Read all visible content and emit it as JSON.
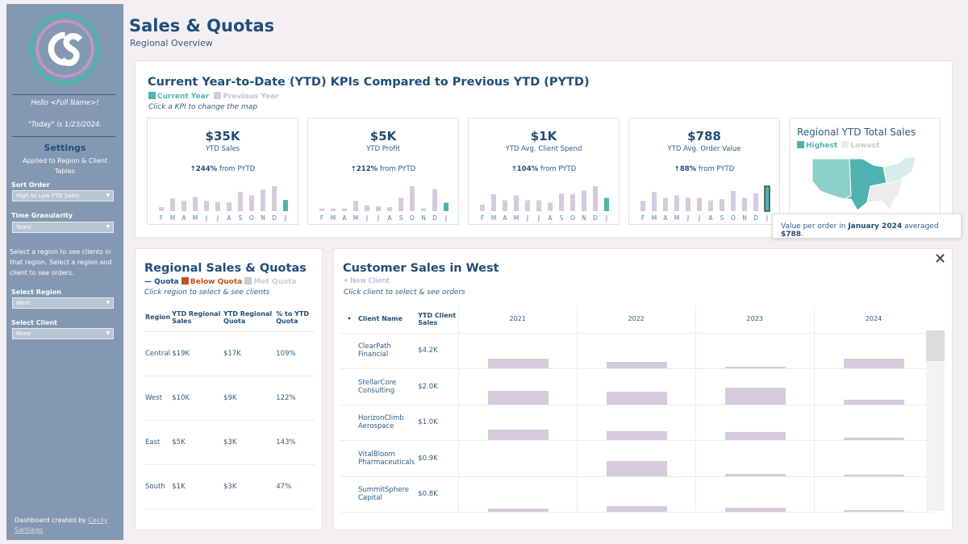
{
  "colors": {
    "current_year": "#4fb3b0",
    "previous_year": "#d5cbdd",
    "below_quota": "#c0521a",
    "met_quota": "#cccccc",
    "sidebar": "#8399b1",
    "title": "#1f4e79"
  },
  "sidebar": {
    "logo_text": "CS",
    "greeting": "Hello <Full Name>!",
    "today": "\"Today\" is 1/23/2024.",
    "settings_title": "Settings",
    "settings_sub": "Applied to Region & Client Tables",
    "sort_order": {
      "label": "Sort Order",
      "value": "High to Low YTD Sales"
    },
    "time_granularity": {
      "label": "Time Granularity",
      "value": "Years"
    },
    "instructions": "Select a region to see clients in that region. Select a region and client to see orders.",
    "select_region": {
      "label": "Select Region",
      "value": "West"
    },
    "select_client": {
      "label": "Select Client",
      "value": "None"
    },
    "credit_prefix": "Dashboard created by ",
    "credit_name": "Cecily Santiago"
  },
  "header": {
    "title": "Sales & Quotas",
    "subtitle": "Regional Overview"
  },
  "kpi_panel": {
    "title": "Current Year-to-Date (YTD) KPIs Compared to Previous YTD (PYTD)",
    "legend_current": "Current Year",
    "legend_previous": "Previous Year",
    "hint": "Click a KPI to change the map",
    "months": [
      "F",
      "M",
      "A",
      "M",
      "J",
      "J",
      "A",
      "S",
      "O",
      "N",
      "D",
      "J"
    ],
    "cards": [
      {
        "value": "$35K",
        "label": "YTD Sales",
        "arrow": "↑",
        "change": "244%",
        "change_suffix": " from PYTD",
        "bars": [
          15,
          47,
          38,
          53,
          38,
          33,
          32,
          71,
          58,
          79,
          92,
          41
        ]
      },
      {
        "value": "$5K",
        "label": "YTD Profit",
        "arrow": "↑",
        "change": "212%",
        "change_suffix": " from PYTD",
        "bars": [
          10,
          10,
          10,
          38,
          22,
          18,
          15,
          49,
          92,
          10,
          81,
          31
        ]
      },
      {
        "value": "$1K",
        "label": "YTD Avg. Client Spend",
        "arrow": "↑",
        "change": "104%",
        "change_suffix": " from PYTD",
        "bars": [
          24,
          62,
          40,
          58,
          40,
          40,
          32,
          65,
          63,
          76,
          92,
          49
        ]
      },
      {
        "value": "$788",
        "label": "YTD Avg. Order Value",
        "arrow": "↑",
        "change": "88%",
        "change_suffix": " from PYTD",
        "bars": [
          38,
          70,
          49,
          58,
          49,
          49,
          40,
          44,
          74,
          49,
          66,
          92
        ],
        "selected": true
      }
    ],
    "map": {
      "title": "Regional YTD Total Sales",
      "legend_high": "Highest",
      "legend_low": "Lowest",
      "regions": {
        "West": "#8ccfcb",
        "Central": "#4fb3b0",
        "East": "#d8ecec",
        "South": "#ececec"
      }
    },
    "tooltip": {
      "prefix": "Value per order in ",
      "month": "January 2024",
      "middle": " averaged ",
      "value": "$788",
      "suffix": "."
    }
  },
  "regional": {
    "title": "Regional Sales & Quotas",
    "legend_quota": "Quota",
    "legend_below": "Below Quota",
    "legend_met": "Met Quota",
    "hint": "Click region to select & see clients",
    "columns": [
      "Region",
      "YTD Regional Sales",
      "YTD Regional Quota",
      "% to YTD Quota"
    ],
    "rows": [
      [
        "Central",
        "$19K",
        "$17K",
        "109%"
      ],
      [
        "West",
        "$10K",
        "$9K",
        "122%"
      ],
      [
        "East",
        "$5K",
        "$3K",
        "143%"
      ],
      [
        "South",
        "$1K",
        "$3K",
        "47%"
      ]
    ]
  },
  "customers": {
    "title": "Customer Sales in West",
    "legend_new": "New Client",
    "hint": "Click client to select & see orders",
    "columns": [
      "•",
      "Client Name",
      "YTD Client Sales"
    ],
    "years": [
      "2021",
      "2022",
      "2023",
      "2024"
    ],
    "rows": [
      {
        "name": "ClearPath Financial",
        "sales": "$4.2K",
        "bars": [
          12,
          8,
          2,
          12
        ]
      },
      {
        "name": "StellarCore Consulting",
        "sales": "$2.0K",
        "bars": [
          17,
          16,
          21,
          6
        ]
      },
      {
        "name": "HorizonClimb Aerospace",
        "sales": "$1.0K",
        "bars": [
          13,
          11,
          10,
          3
        ]
      },
      {
        "name": "VitalBloom Pharmaceuticals",
        "sales": "$0.9K",
        "bars": [
          0,
          19,
          3,
          2
        ]
      },
      {
        "name": "SummitSphere Capital",
        "sales": "$0.8K",
        "bars": [
          4,
          7,
          5,
          2
        ]
      }
    ]
  }
}
